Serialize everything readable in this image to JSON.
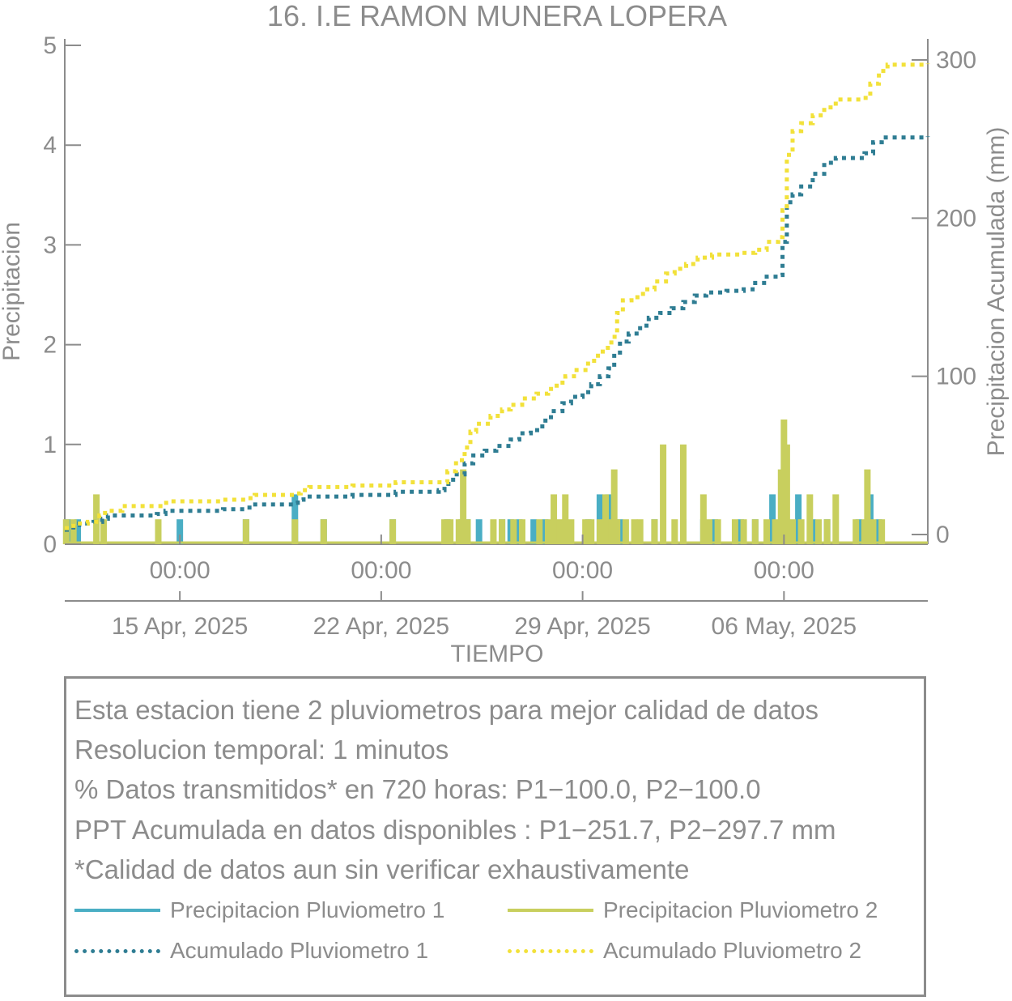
{
  "chart_data": {
    "type": "line",
    "title": "16. I.E RAMON MUNERA LOPERA",
    "xlabel": "TIEMPO",
    "ylabel_left": "Precipitacion",
    "ylabel_right": "Precipitacion Acumulada (mm)",
    "xlim": [
      0,
      30
    ],
    "ylim_left": [
      0,
      5
    ],
    "ylim_right": [
      0,
      300
    ],
    "yticks_left": [
      0,
      1,
      2,
      3,
      4,
      5
    ],
    "yticks_right": [
      0,
      100,
      200,
      300
    ],
    "xticks": [
      {
        "x": 4,
        "time": "00:00",
        "date": "15 Apr, 2025"
      },
      {
        "x": 11,
        "time": "00:00",
        "date": "22 Apr, 2025"
      },
      {
        "x": 18,
        "time": "00:00",
        "date": "29 Apr, 2025"
      },
      {
        "x": 25,
        "time": "00:00",
        "date": "06 May, 2025"
      }
    ],
    "grid": false,
    "series": [
      {
        "name": "Precipitacion Pluviometro 1",
        "kind": "bars",
        "axis": "left",
        "color": "#4aaec4",
        "points": [
          [
            0.1,
            0.25
          ],
          [
            0.45,
            0.25
          ],
          [
            4.0,
            0.25
          ],
          [
            6.3,
            0.25
          ],
          [
            8.0,
            0.5
          ],
          [
            9.0,
            0.25
          ],
          [
            11.4,
            0.25
          ],
          [
            13.3,
            0.25
          ],
          [
            13.8,
            0.25
          ],
          [
            14.0,
            0.25
          ],
          [
            14.4,
            0.25
          ],
          [
            15.2,
            0.25
          ],
          [
            15.5,
            0.25
          ],
          [
            15.8,
            0.25
          ],
          [
            16.3,
            0.25
          ],
          [
            16.7,
            0.25
          ],
          [
            17.0,
            0.25
          ],
          [
            17.4,
            0.25
          ],
          [
            18.2,
            0.25
          ],
          [
            18.6,
            0.5
          ],
          [
            18.9,
            0.5
          ],
          [
            19.3,
            0.25
          ],
          [
            20.5,
            0.25
          ],
          [
            21.5,
            0.25
          ],
          [
            22.2,
            0.25
          ],
          [
            22.6,
            0.25
          ],
          [
            23.5,
            0.25
          ],
          [
            24.0,
            0.25
          ],
          [
            24.6,
            0.5
          ],
          [
            25.0,
            0.75
          ],
          [
            25.5,
            0.5
          ],
          [
            26.0,
            0.25
          ],
          [
            26.5,
            0.25
          ],
          [
            27.6,
            0.25
          ],
          [
            28.0,
            0.5
          ],
          [
            28.3,
            0.25
          ]
        ]
      },
      {
        "name": "Precipitacion Pluviometro 2",
        "kind": "bars",
        "axis": "left",
        "color": "#c8cf5e",
        "points": [
          [
            0.05,
            0.25
          ],
          [
            0.3,
            0.25
          ],
          [
            1.1,
            0.5
          ],
          [
            1.35,
            0.25
          ],
          [
            3.25,
            0.25
          ],
          [
            6.3,
            0.25
          ],
          [
            8.0,
            0.25
          ],
          [
            9.0,
            0.25
          ],
          [
            11.4,
            0.25
          ],
          [
            13.2,
            0.25
          ],
          [
            13.4,
            0.25
          ],
          [
            13.7,
            0.25
          ],
          [
            13.85,
            0.75
          ],
          [
            14.0,
            0.25
          ],
          [
            14.9,
            0.25
          ],
          [
            15.2,
            0.25
          ],
          [
            15.6,
            0.25
          ],
          [
            15.9,
            0.25
          ],
          [
            16.5,
            0.25
          ],
          [
            16.8,
            0.25
          ],
          [
            17.0,
            0.5
          ],
          [
            17.2,
            0.25
          ],
          [
            17.4,
            0.5
          ],
          [
            17.6,
            0.25
          ],
          [
            18.1,
            0.25
          ],
          [
            18.3,
            0.25
          ],
          [
            18.6,
            0.25
          ],
          [
            18.8,
            0.5
          ],
          [
            19.0,
            0.25
          ],
          [
            19.1,
            0.75
          ],
          [
            19.2,
            0.25
          ],
          [
            19.5,
            0.25
          ],
          [
            19.8,
            0.25
          ],
          [
            20.0,
            0.25
          ],
          [
            20.5,
            0.25
          ],
          [
            20.8,
            1.0
          ],
          [
            21.2,
            0.25
          ],
          [
            21.5,
            1.0
          ],
          [
            22.2,
            0.5
          ],
          [
            22.4,
            0.25
          ],
          [
            22.7,
            0.25
          ],
          [
            23.3,
            0.25
          ],
          [
            23.6,
            0.25
          ],
          [
            24.0,
            0.25
          ],
          [
            24.4,
            0.25
          ],
          [
            24.7,
            0.25
          ],
          [
            24.9,
            0.75
          ],
          [
            25.0,
            1.25
          ],
          [
            25.1,
            1.0
          ],
          [
            25.3,
            0.25
          ],
          [
            25.6,
            0.25
          ],
          [
            25.9,
            0.5
          ],
          [
            26.2,
            0.25
          ],
          [
            26.5,
            0.25
          ],
          [
            26.8,
            0.5
          ],
          [
            27.5,
            0.25
          ],
          [
            27.8,
            0.25
          ],
          [
            27.9,
            0.75
          ],
          [
            28.1,
            0.25
          ],
          [
            28.4,
            0.25
          ]
        ]
      },
      {
        "name": "Acumulado Pluviometro 1",
        "kind": "line",
        "axis": "right",
        "color": "#2f7d93",
        "dash": "dotted",
        "points": [
          [
            0,
            3
          ],
          [
            0.3,
            6
          ],
          [
            0.5,
            7
          ],
          [
            1.0,
            8
          ],
          [
            1.3,
            10
          ],
          [
            1.5,
            12
          ],
          [
            2.5,
            12
          ],
          [
            3.2,
            13
          ],
          [
            3.5,
            15
          ],
          [
            5.5,
            16
          ],
          [
            6.3,
            17
          ],
          [
            6.5,
            19
          ],
          [
            8.0,
            20
          ],
          [
            8.1,
            22
          ],
          [
            8.3,
            24
          ],
          [
            10.0,
            25
          ],
          [
            11.5,
            27
          ],
          [
            13.0,
            28
          ],
          [
            13.2,
            32
          ],
          [
            13.5,
            38
          ],
          [
            13.9,
            45
          ],
          [
            14.2,
            50
          ],
          [
            14.6,
            53
          ],
          [
            15.0,
            56
          ],
          [
            15.5,
            60
          ],
          [
            15.8,
            64
          ],
          [
            16.2,
            66
          ],
          [
            16.6,
            72
          ],
          [
            16.9,
            78
          ],
          [
            17.3,
            83
          ],
          [
            17.6,
            87
          ],
          [
            18.0,
            90
          ],
          [
            18.3,
            95
          ],
          [
            18.6,
            100
          ],
          [
            18.9,
            105
          ],
          [
            19.1,
            115
          ],
          [
            19.3,
            122
          ],
          [
            19.6,
            127
          ],
          [
            20.0,
            132
          ],
          [
            20.3,
            137
          ],
          [
            20.7,
            140
          ],
          [
            21.1,
            143
          ],
          [
            21.5,
            147
          ],
          [
            21.9,
            151
          ],
          [
            22.3,
            153
          ],
          [
            23.0,
            154
          ],
          [
            23.6,
            155
          ],
          [
            24.0,
            159
          ],
          [
            24.4,
            163
          ],
          [
            24.8,
            164
          ],
          [
            24.95,
            185
          ],
          [
            25.1,
            210
          ],
          [
            25.3,
            215
          ],
          [
            25.6,
            220
          ],
          [
            26.0,
            228
          ],
          [
            26.4,
            235
          ],
          [
            26.8,
            238
          ],
          [
            27.5,
            238
          ],
          [
            27.8,
            241
          ],
          [
            28.1,
            248
          ],
          [
            28.4,
            251
          ],
          [
            30,
            251.7
          ]
        ]
      },
      {
        "name": "Acumulado Pluviometro 2",
        "kind": "line",
        "axis": "right",
        "color": "#f2e13a",
        "dash": "dotted",
        "points": [
          [
            0,
            4
          ],
          [
            0.3,
            7
          ],
          [
            0.8,
            8
          ],
          [
            1.2,
            12
          ],
          [
            1.4,
            15
          ],
          [
            2.0,
            18
          ],
          [
            3.2,
            18
          ],
          [
            3.4,
            20
          ],
          [
            3.7,
            21
          ],
          [
            5.5,
            22
          ],
          [
            6.3,
            23
          ],
          [
            6.6,
            25
          ],
          [
            8.0,
            26
          ],
          [
            8.2,
            28
          ],
          [
            8.5,
            30
          ],
          [
            10.0,
            31
          ],
          [
            11.5,
            33
          ],
          [
            13.2,
            33
          ],
          [
            13.3,
            40
          ],
          [
            13.6,
            47
          ],
          [
            13.9,
            55
          ],
          [
            14.1,
            65
          ],
          [
            14.3,
            70
          ],
          [
            14.8,
            75
          ],
          [
            15.2,
            79
          ],
          [
            15.5,
            82
          ],
          [
            15.9,
            86
          ],
          [
            16.4,
            89
          ],
          [
            16.8,
            92
          ],
          [
            17.1,
            96
          ],
          [
            17.4,
            100
          ],
          [
            17.7,
            104
          ],
          [
            18.1,
            108
          ],
          [
            18.4,
            113
          ],
          [
            18.7,
            118
          ],
          [
            19.0,
            125
          ],
          [
            19.2,
            140
          ],
          [
            19.4,
            148
          ],
          [
            19.7,
            150
          ],
          [
            20.1,
            155
          ],
          [
            20.5,
            160
          ],
          [
            20.9,
            165
          ],
          [
            21.2,
            168
          ],
          [
            21.6,
            171
          ],
          [
            22.0,
            175
          ],
          [
            22.5,
            177
          ],
          [
            23.0,
            177
          ],
          [
            23.5,
            178
          ],
          [
            24.0,
            180
          ],
          [
            24.4,
            185
          ],
          [
            24.8,
            188
          ],
          [
            24.95,
            205
          ],
          [
            25.1,
            240
          ],
          [
            25.3,
            255
          ],
          [
            25.6,
            260
          ],
          [
            26.0,
            265
          ],
          [
            26.4,
            270
          ],
          [
            26.8,
            275
          ],
          [
            27.3,
            275
          ],
          [
            27.7,
            276
          ],
          [
            28.0,
            285
          ],
          [
            28.3,
            293
          ],
          [
            28.6,
            297
          ],
          [
            30,
            297.7
          ]
        ]
      }
    ]
  },
  "info": {
    "lines": [
      "Esta estacion tiene 2 pluviometros para mejor calidad de datos",
      "Resolucion temporal: 1 minutos",
      "% Datos transmitidos* en 720 horas: P1−100.0, P2−100.0",
      "PPT Acumulada en datos disponibles : P1−251.7, P2−297.7 mm",
      "*Calidad de datos aun sin verificar exhaustivamente"
    ],
    "legend": [
      {
        "label": "Precipitacion Pluviometro 1",
        "color": "#4aaec4",
        "style": "solid"
      },
      {
        "label": "Precipitacion Pluviometro 2",
        "color": "#c8cf5e",
        "style": "solid"
      },
      {
        "label": "Acumulado Pluviometro 1",
        "color": "#2f7d93",
        "style": "dotted"
      },
      {
        "label": "Acumulado Pluviometro 2",
        "color": "#f2e13a",
        "style": "dotted"
      }
    ]
  }
}
